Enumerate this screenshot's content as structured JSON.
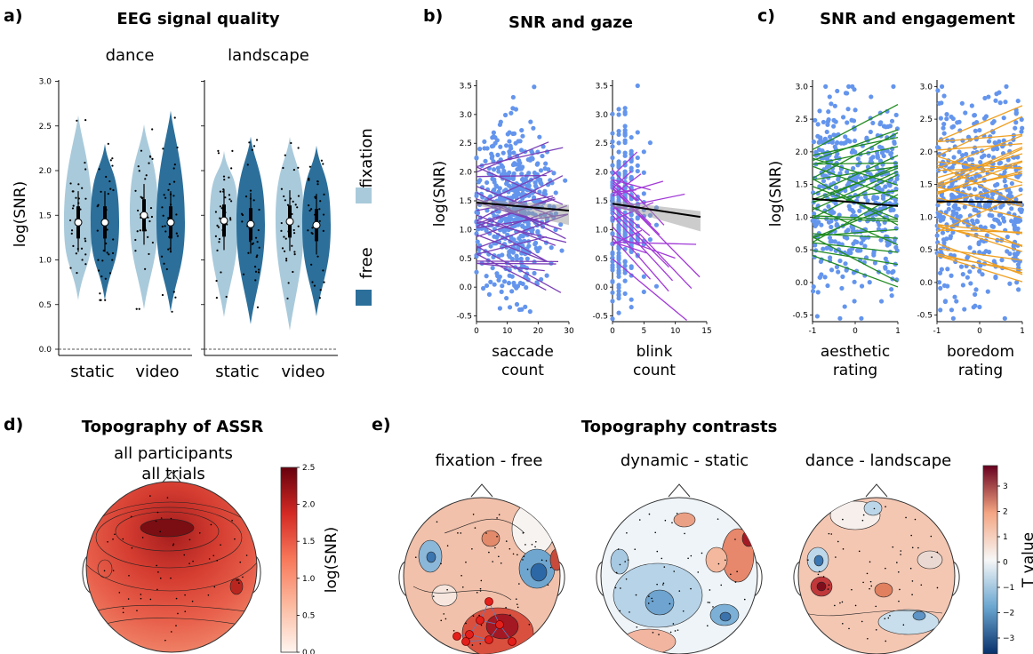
{
  "panels": {
    "a": {
      "letter": "a)",
      "title": "EEG signal quality",
      "groups": [
        "dance",
        "landscape"
      ],
      "conditions": [
        "static",
        "video"
      ],
      "ylabel": "log(SNR)",
      "yticks": [
        "0.0",
        "0.5",
        "1.0",
        "1.5",
        "2.0",
        "2.5",
        "3.0"
      ],
      "legend": [
        "fixation",
        "free"
      ]
    },
    "b": {
      "letter": "b)",
      "title": "SNR and gaze",
      "ylabel": "log(SNR)",
      "xlabels": [
        [
          "saccade",
          "count"
        ],
        [
          "blink",
          "count"
        ]
      ],
      "yticks": [
        "-0.5",
        "0.0",
        "0.5",
        "1.0",
        "1.5",
        "2.0",
        "2.5",
        "3.0",
        "3.5"
      ],
      "xticks1": [
        "0",
        "10",
        "20",
        "30"
      ],
      "xticks2": [
        "0",
        "5",
        "10",
        "15"
      ]
    },
    "c": {
      "letter": "c)",
      "title": "SNR and engagement",
      "ylabel": "log(SNR)",
      "xlabels": [
        [
          "aesthetic",
          "rating"
        ],
        [
          "boredom",
          "rating"
        ]
      ],
      "yticks": [
        "-0.5",
        "0.0",
        "0.5",
        "1.0",
        "1.5",
        "2.0",
        "2.5",
        "3.0"
      ],
      "xticks": [
        "-1",
        "0",
        "1"
      ]
    },
    "d": {
      "letter": "d)",
      "title": "Topography of ASSR",
      "subtitle": [
        "all participants",
        "all trials"
      ],
      "colorbar_label": "log(SNR)",
      "colorbar_ticks": [
        "0.0",
        "0.5",
        "1.0",
        "1.5",
        "2.0",
        "2.5"
      ]
    },
    "e": {
      "letter": "e)",
      "title": "Topography contrasts",
      "maps": [
        "fixation - free",
        "dynamic - static",
        "dance - landscape"
      ],
      "colorbar_label": "T value",
      "colorbar_ticks": [
        "3",
        "2",
        "1",
        "0",
        "−1",
        "−2",
        "−3"
      ]
    }
  },
  "colors": {
    "fixation": "#a9cadb",
    "free": "#2c6f9a",
    "scatter": "#6495ed",
    "saccade_lines": "#7a3fb8",
    "blink_lines": "#a23ad8",
    "aesthetic_lines": "#1f8a1f",
    "boredom_lines": "#f0a020",
    "fit": "#000000"
  },
  "chart_data": [
    {
      "type": "violin",
      "title": "EEG signal quality",
      "ylabel": "log(SNR)",
      "ylim": [
        0,
        3
      ],
      "series": [
        {
          "name": "fixation",
          "values": {
            "dance-static": 1.42,
            "dance-video": 1.5,
            "landscape-static": 1.44,
            "landscape-video": 1.43
          }
        },
        {
          "name": "free",
          "values": {
            "dance-static": 1.42,
            "dance-video": 1.42,
            "landscape-static": 1.4,
            "landscape-video": 1.39
          }
        }
      ]
    },
    {
      "type": "scatter",
      "title": "SNR and gaze",
      "ylabel": "log(SNR)",
      "subplots": [
        {
          "xlabel": "saccade count",
          "xlim": [
            0,
            30
          ],
          "ylim": [
            -0.6,
            3.6
          ],
          "fit": {
            "x": [
              0,
              30
            ],
            "y": [
              1.47,
              1.33
            ]
          }
        },
        {
          "xlabel": "blink count",
          "xlim": [
            0,
            15
          ],
          "ylim": [
            -0.6,
            3.6
          ],
          "fit": {
            "x": [
              0,
              14
            ],
            "y": [
              1.45,
              1.22
            ]
          }
        }
      ]
    },
    {
      "type": "scatter",
      "title": "SNR and engagement",
      "ylabel": "log(SNR)",
      "subplots": [
        {
          "xlabel": "aesthetic rating",
          "xlim": [
            -1,
            1
          ],
          "ylim": [
            -0.6,
            3.1
          ],
          "fit": {
            "x": [
              -1,
              1
            ],
            "y": [
              1.28,
              1.17
            ]
          }
        },
        {
          "xlabel": "boredom rating",
          "xlim": [
            -1,
            1
          ],
          "ylim": [
            -0.6,
            3.1
          ],
          "fit": {
            "x": [
              -1,
              1
            ],
            "y": [
              1.24,
              1.23
            ]
          }
        }
      ]
    }
  ]
}
